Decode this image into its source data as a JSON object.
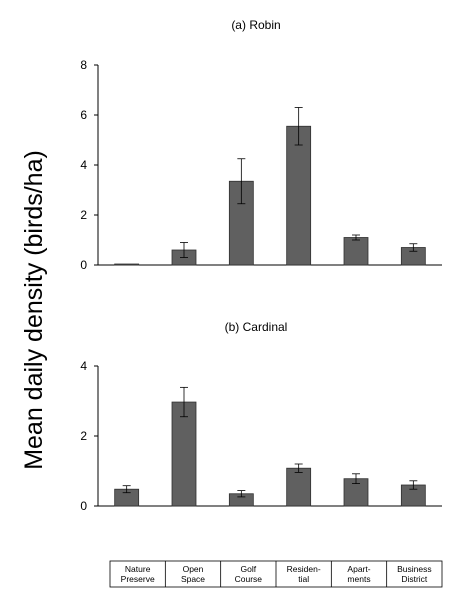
{
  "y_axis_label": "Mean daily density (birds/ha)",
  "chart_data": [
    {
      "type": "bar",
      "title": "(a) Robin",
      "categories": [
        "Nature Preserve",
        "Open Space",
        "Golf Course",
        "Residential",
        "Apartments",
        "Business District"
      ],
      "values": [
        0.0,
        0.6,
        3.35,
        5.55,
        1.1,
        0.7
      ],
      "errors": [
        0.0,
        0.3,
        0.9,
        0.75,
        0.1,
        0.15
      ],
      "ylim": [
        0,
        8
      ],
      "yticks": [
        0,
        2,
        4,
        6,
        8
      ],
      "color": "#606060"
    },
    {
      "type": "bar",
      "title": "(b) Cardinal",
      "categories": [
        "Nature Preserve",
        "Open Space",
        "Golf Course",
        "Residential",
        "Apartments",
        "Business District"
      ],
      "values": [
        0.48,
        2.97,
        0.35,
        1.08,
        0.78,
        0.6
      ],
      "errors": [
        0.1,
        0.42,
        0.09,
        0.12,
        0.14,
        0.12
      ],
      "ylim": [
        0,
        4
      ],
      "yticks": [
        0,
        2,
        4
      ],
      "color": "#606060"
    }
  ],
  "category_labels": [
    [
      "Nature",
      "Preserve"
    ],
    [
      "Open",
      "Space"
    ],
    [
      "Golf",
      "Course"
    ],
    [
      "Residen-",
      "tial"
    ],
    [
      "Apart-",
      "ments"
    ],
    [
      "Business",
      "District"
    ]
  ]
}
